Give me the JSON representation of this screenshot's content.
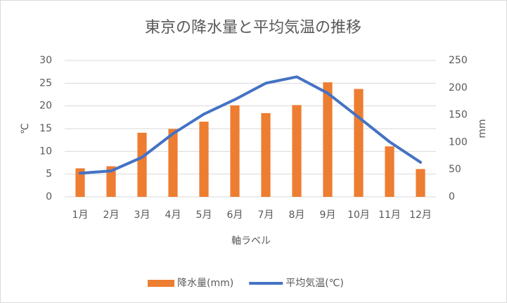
{
  "chart_data": {
    "type": "combo",
    "title": "東京の降水量と平均気温の推移",
    "x_label": "軸ラベル",
    "y_label": "℃",
    "y2_label": "mm",
    "categories": [
      "1月",
      "2月",
      "3月",
      "4月",
      "5月",
      "6月",
      "7月",
      "8月",
      "9月",
      "10月",
      "11月",
      "12月"
    ],
    "series": [
      {
        "name": "降水量(mm)",
        "type": "bar",
        "axis": "y2",
        "color": "#ed7d31",
        "values": [
          52.3,
          56.1,
          117.5,
          124.5,
          137.8,
          167.7,
          153.5,
          168.2,
          209.9,
          197.8,
          92.5,
          51.0
        ]
      },
      {
        "name": "平均気温(℃)",
        "type": "line",
        "axis": "y",
        "color": "#4472c4",
        "values": [
          5.2,
          5.7,
          8.7,
          13.9,
          18.2,
          21.4,
          25.0,
          26.4,
          22.8,
          17.5,
          12.1,
          7.6
        ]
      }
    ],
    "ylim": [
      0,
      30
    ],
    "yticks": [
      0,
      5,
      10,
      15,
      20,
      25,
      30
    ],
    "y2lim": [
      0,
      250
    ],
    "y2ticks": [
      0,
      50,
      100,
      150,
      200,
      250
    ],
    "grid": true,
    "legend": "bottom"
  }
}
